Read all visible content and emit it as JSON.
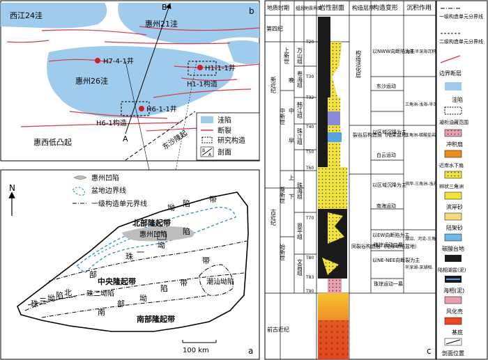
{
  "map_b": {
    "panel_letter": "b",
    "north_letter": "B",
    "labels": {
      "xijiang": "西江24洼",
      "huizhou21": "惠州21洼",
      "huizhou26": "惠州26洼",
      "huixi_uplift": "惠西低凸起",
      "dongsha_uplift": "东沙隆起",
      "h1_1": "H1-1构造",
      "h6_1": "H6-1构造"
    },
    "wells": [
      "H7-4-1井",
      "H1-1-1井",
      "H6-1-1井"
    ],
    "profile_end": "A",
    "legend": [
      {
        "symbol": "sag",
        "label": "洼陷"
      },
      {
        "symbol": "fault",
        "label": "断裂"
      },
      {
        "symbol": "study",
        "label": "研究构造"
      },
      {
        "symbol": "section",
        "label": "剖面",
        "letters": [
          "B",
          "A"
        ]
      }
    ]
  },
  "map_a": {
    "panel_letter": "a",
    "north": "N",
    "legend": [
      {
        "symbol": "depression",
        "label": "惠州凹陷"
      },
      {
        "symbol": "basin",
        "label": "盆地边界线"
      },
      {
        "symbol": "unit",
        "label": "一级构造单元界线"
      }
    ],
    "units": {
      "north_uplift": "北部隆起带",
      "huizhou_depression": "惠州凹陷",
      "central_uplift": "中央隆起带",
      "south_uplift": "南部隆起带",
      "zhu1_chars": [
        "珠",
        "一",
        "坳",
        "陷"
      ],
      "zhu3_chars": [
        "珠",
        "三",
        "坳",
        "陷",
        "北"
      ],
      "north_band_chars": [
        "坳",
        "陷",
        "带"
      ],
      "south_chars": [
        "南",
        "部",
        "坳",
        "陷",
        "带"
      ],
      "zhu2": "珠二坳陷",
      "chaoshan": "潮汕坳陷",
      "bu": "部",
      "dai": "带"
    },
    "scale": "100 km"
  },
  "column": {
    "panel_letter": "c",
    "headers": [
      "地质时期",
      "组段",
      "地震界面",
      "岩性剖面",
      "构造层序",
      "构造变形",
      "沉积作用"
    ],
    "quaternary": "第四纪",
    "neogene": "新近纪",
    "paleogene": "古近纪",
    "pre_paleogene": "前古近纪",
    "miocene_upper": "上新世",
    "miocene_mid": "中新世",
    "late": "晚",
    "mid": "中",
    "early": "早",
    "eocene_label": "渐新世",
    "oligocene_label": "始新世",
    "formations": [
      "万山组",
      "粤海组",
      "韩江组",
      "珠江组",
      "珠海组",
      "恩平组",
      "文昌组"
    ],
    "ages_upper_lower": [
      "上",
      "下"
    ],
    "horizons": [
      "T20",
      "T30",
      "T32",
      "T40",
      "T50",
      "T60",
      "T70",
      "T80",
      "T83",
      "T90"
    ],
    "sequences": {
      "reactivation": "构造活化层",
      "post_rift": "裂谷后构造层（陆架盆地）",
      "syn_rift": "同裂谷构造层（陆缘断陷盆地）"
    },
    "deformation": [
      "以NWW向断陷为主",
      "东沙运动",
      "以区域沉降为主",
      "白云运动",
      "以区域沉降为主",
      "南海运动",
      "以EW向断陷为主",
      "珠琼运动二幕",
      "以NE-NEE向断裂为主",
      "珠琼运动一幕"
    ],
    "sedimentation": [
      "浅海-半深海沉积",
      "三角洲-浅海-半深海沉积",
      "三角洲-碳酸盐岩台地-浅海-半深海沉积",
      "滨岸-三角洲-浅海沉积",
      "湖沼、河流-三角洲-平原沉积",
      "半深湖-深湖相、辫状河三角洲沉积"
    ]
  },
  "legend_right": [
    {
      "symbol": "unit1",
      "label": "一级构造单元分界线"
    },
    {
      "symbol": "unit2",
      "label": "二级构造单元分界线"
    },
    {
      "symbol": "fault",
      "label": "边界断层"
    },
    {
      "symbol": "sag",
      "label": "洼陷"
    },
    {
      "symbol": "oil",
      "label": "凝析油藏范围"
    },
    {
      "symbol": "fan",
      "label": "冲积扇"
    },
    {
      "symbol": "nearshore",
      "label": "近岸水下扇"
    },
    {
      "symbol": "braided",
      "label": "辫状三角洲"
    },
    {
      "symbol": "shore",
      "label": "滨岸砂"
    },
    {
      "symbol": "shelf",
      "label": "陆架砂"
    },
    {
      "symbol": "carbonate",
      "label": "碳酸台地"
    },
    {
      "symbol": "lacustrine",
      "label": "陆相湖盆(泥)"
    },
    {
      "symbol": "marine",
      "label": "海相(泥)"
    },
    {
      "symbol": "weathered",
      "label": "风化壳"
    },
    {
      "symbol": "basement",
      "label": "基底"
    },
    {
      "symbol": "section",
      "label": "剖面位置"
    }
  ]
}
